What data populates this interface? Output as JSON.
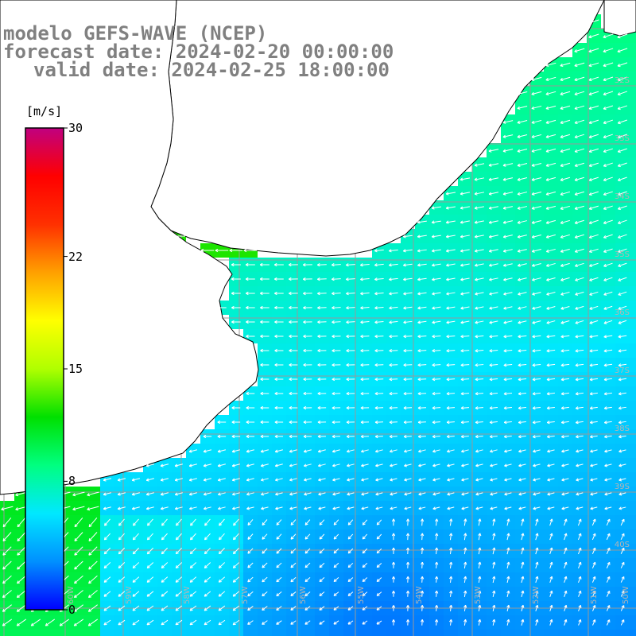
{
  "header": {
    "model_line": "modelo GEFS-WAVE (NCEP)",
    "forecast_line": "forecast date: 2024-02-20 00:00:00",
    "valid_line": "valid date: 2024-02-25 18:00:00"
  },
  "colorbar": {
    "unit": "[m/s]",
    "min": 0,
    "max": 30,
    "ticks": [
      "30",
      "22",
      "15",
      "8",
      "0"
    ],
    "tick_values": [
      30,
      22,
      15,
      8,
      0
    ],
    "colors": [
      "#0000ff",
      "#0090ff",
      "#00e8ff",
      "#00ff80",
      "#00e000",
      "#b0ff00",
      "#ffff00",
      "#ffa000",
      "#ff3000",
      "#ff0000",
      "#c00080"
    ]
  },
  "map": {
    "lat_labels": [
      "32S",
      "33S",
      "34S",
      "35S",
      "36S",
      "37S",
      "38S",
      "39S",
      "40S"
    ],
    "lon_labels": [
      "60W",
      "59W",
      "58W",
      "57W",
      "56W",
      "55W",
      "54W",
      "53W",
      "52W",
      "51W",
      "50W"
    ],
    "grid_color": "#999999",
    "land_color": "#ffffff",
    "coast_color": "#000000",
    "arrow_color": "#ffffff"
  }
}
